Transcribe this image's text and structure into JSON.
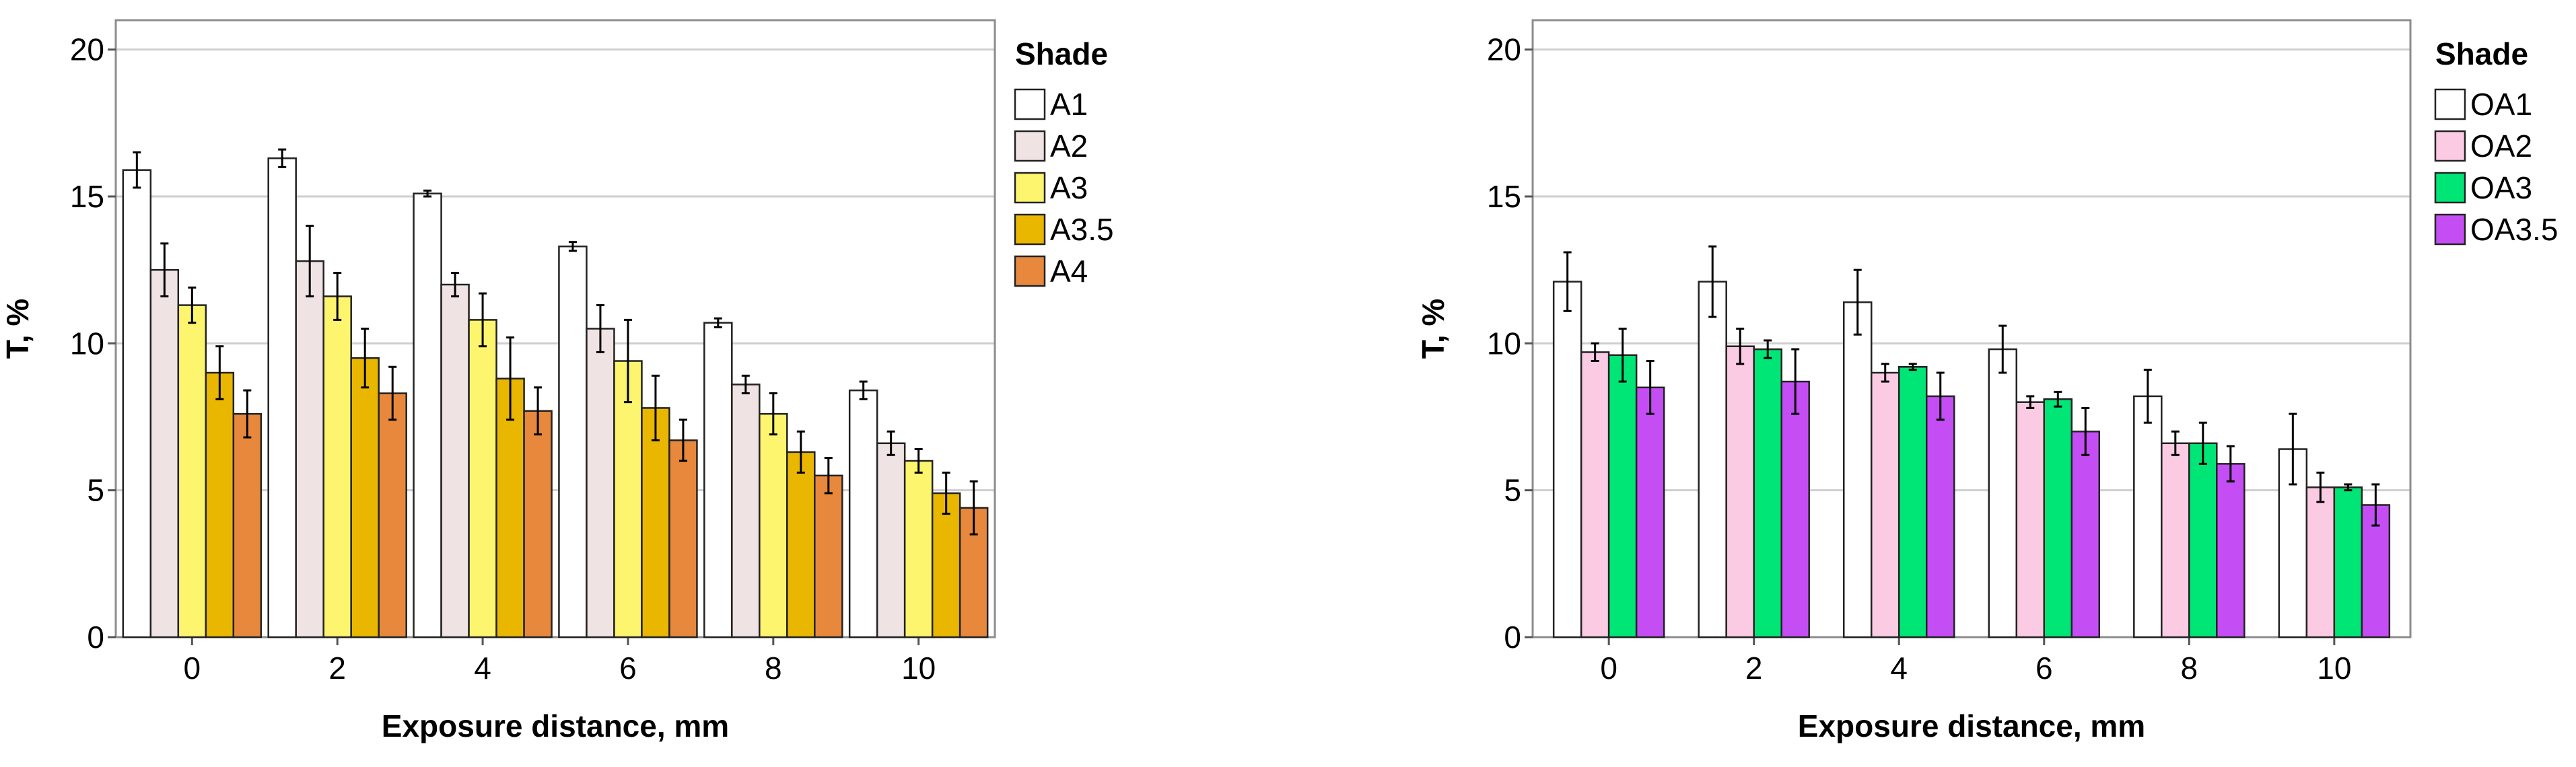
{
  "chart_data": [
    {
      "type": "bar",
      "title": "",
      "xlabel": "Exposure distance, mm",
      "ylabel": "T, %",
      "ylim": [
        0,
        21
      ],
      "yticks": [
        0,
        5,
        10,
        15,
        20
      ],
      "grid": true,
      "categories": [
        "0",
        "2",
        "4",
        "6",
        "8",
        "10"
      ],
      "legend_title": "Shade",
      "legend_position": "right",
      "series": [
        {
          "name": "A1",
          "color": "#ffffff",
          "values": [
            15.9,
            16.3,
            15.1,
            13.3,
            10.7,
            8.4
          ],
          "errors": [
            0.6,
            0.3,
            0.1,
            0.15,
            0.15,
            0.3
          ]
        },
        {
          "name": "A2",
          "color": "#efe3e3",
          "values": [
            12.5,
            12.8,
            12.0,
            10.5,
            8.6,
            6.6
          ],
          "errors": [
            0.9,
            1.2,
            0.4,
            0.8,
            0.3,
            0.4
          ]
        },
        {
          "name": "A3",
          "color": "#fdf56e",
          "values": [
            11.3,
            11.6,
            10.8,
            9.4,
            7.6,
            6.0
          ],
          "errors": [
            0.6,
            0.8,
            0.9,
            1.4,
            0.7,
            0.4
          ]
        },
        {
          "name": "A3.5",
          "color": "#eab700",
          "values": [
            9.0,
            9.5,
            8.8,
            7.8,
            6.3,
            4.9
          ],
          "errors": [
            0.9,
            1.0,
            1.4,
            1.1,
            0.7,
            0.7
          ]
        },
        {
          "name": "A4",
          "color": "#e8883c",
          "values": [
            7.6,
            8.3,
            7.7,
            6.7,
            5.5,
            4.4
          ],
          "errors": [
            0.8,
            0.9,
            0.8,
            0.7,
            0.6,
            0.9
          ]
        }
      ]
    },
    {
      "type": "bar",
      "title": "",
      "xlabel": "Exposure distance, mm",
      "ylabel": "T, %",
      "ylim": [
        0,
        21
      ],
      "yticks": [
        0,
        5,
        10,
        15,
        20
      ],
      "grid": true,
      "categories": [
        "0",
        "2",
        "4",
        "6",
        "8",
        "10"
      ],
      "legend_title": "Shade",
      "legend_position": "right",
      "series": [
        {
          "name": "OA1",
          "color": "#ffffff",
          "values": [
            12.1,
            12.1,
            11.4,
            9.8,
            8.2,
            6.4
          ],
          "errors": [
            1.0,
            1.2,
            1.1,
            0.8,
            0.9,
            1.2
          ]
        },
        {
          "name": "OA2",
          "color": "#fbcbe4",
          "values": [
            9.7,
            9.9,
            9.0,
            8.0,
            6.6,
            5.1
          ],
          "errors": [
            0.3,
            0.6,
            0.3,
            0.2,
            0.4,
            0.5
          ]
        },
        {
          "name": "OA3",
          "color": "#00e676",
          "values": [
            9.6,
            9.8,
            9.2,
            8.1,
            6.6,
            5.1
          ],
          "errors": [
            0.9,
            0.3,
            0.1,
            0.25,
            0.7,
            0.1
          ]
        },
        {
          "name": "OA3.5",
          "color": "#c44ef4",
          "values": [
            8.5,
            8.7,
            8.2,
            7.0,
            5.9,
            4.5
          ],
          "errors": [
            0.9,
            1.1,
            0.8,
            0.8,
            0.6,
            0.7
          ]
        }
      ]
    }
  ]
}
